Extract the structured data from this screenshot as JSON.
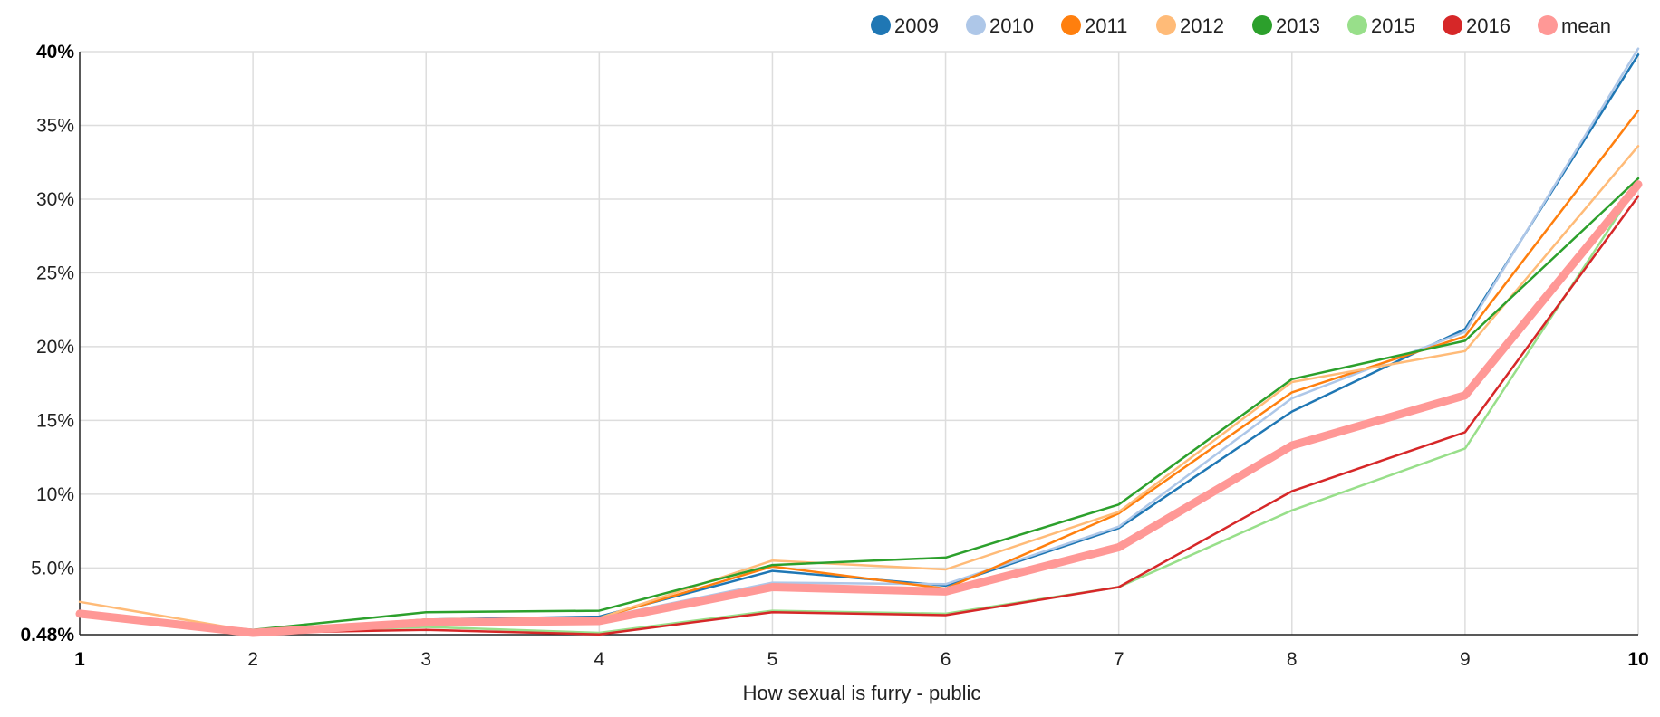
{
  "chart_data": {
    "type": "line",
    "title": "",
    "xlabel": "How sexual is furry - public",
    "ylabel": "",
    "x": [
      1,
      2,
      3,
      4,
      5,
      6,
      7,
      8,
      9,
      10
    ],
    "x_tick_labels": [
      "1",
      "2",
      "3",
      "4",
      "5",
      "6",
      "7",
      "8",
      "9",
      "10"
    ],
    "y_tick_labels": [
      "0.48%",
      "5.0%",
      "10%",
      "15%",
      "20%",
      "25%",
      "30%",
      "35%",
      "40%"
    ],
    "y_tick_values": [
      0.48,
      5,
      10,
      15,
      20,
      25,
      30,
      35,
      40
    ],
    "ylim": [
      0.48,
      40
    ],
    "xlim": [
      1,
      10
    ],
    "grid": true,
    "legend_position": "top-right",
    "series": [
      {
        "name": "2009",
        "color": "#1f77b4",
        "width": 2.5,
        "values": [
          1.9,
          0.6,
          1.5,
          1.7,
          4.8,
          3.8,
          7.7,
          15.6,
          21.2,
          39.8
        ]
      },
      {
        "name": "2010",
        "color": "#aec7e8",
        "width": 2.5,
        "values": [
          1.9,
          0.8,
          1.4,
          1.6,
          4.0,
          3.9,
          7.8,
          16.5,
          21.0,
          40.2
        ]
      },
      {
        "name": "2011",
        "color": "#ff7f0e",
        "width": 2.5,
        "values": [
          1.9,
          0.7,
          1.5,
          1.6,
          5.1,
          3.6,
          8.7,
          16.9,
          20.7,
          36.0
        ]
      },
      {
        "name": "2012",
        "color": "#ffbb78",
        "width": 2.5,
        "values": [
          2.7,
          0.7,
          1.5,
          1.6,
          5.5,
          4.9,
          8.8,
          17.6,
          19.7,
          33.6
        ]
      },
      {
        "name": "2013",
        "color": "#2ca02c",
        "width": 2.5,
        "values": [
          1.9,
          0.8,
          2.0,
          2.1,
          5.2,
          5.7,
          9.3,
          17.8,
          20.4,
          31.4
        ]
      },
      {
        "name": "2015",
        "color": "#98df8a",
        "width": 2.5,
        "values": [
          1.9,
          0.6,
          1.0,
          0.6,
          2.1,
          1.9,
          3.7,
          8.9,
          13.1,
          31.0
        ]
      },
      {
        "name": "2016",
        "color": "#d62728",
        "width": 2.5,
        "values": [
          1.8,
          0.6,
          0.8,
          0.5,
          2.0,
          1.8,
          3.7,
          10.2,
          14.2,
          30.2
        ]
      },
      {
        "name": "mean",
        "color": "#ff9896",
        "width": 9,
        "values": [
          1.9,
          0.6,
          1.3,
          1.4,
          3.7,
          3.4,
          6.4,
          13.3,
          16.7,
          31.0
        ]
      }
    ]
  }
}
